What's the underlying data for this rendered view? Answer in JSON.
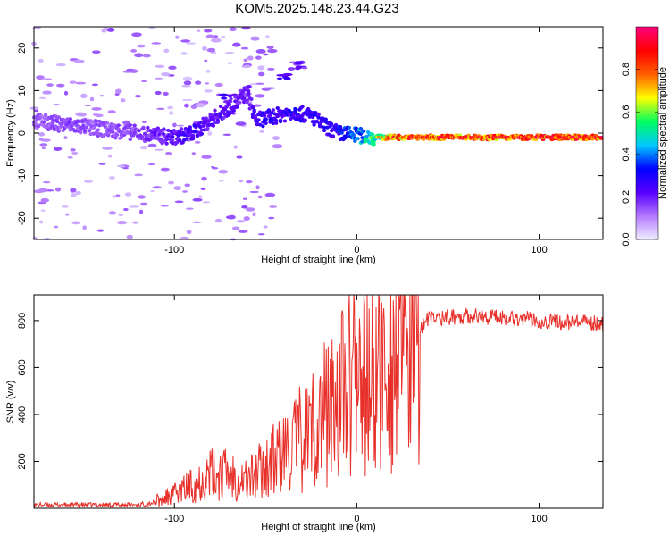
{
  "title": "KOM5.2025.148.23.44.G23",
  "chart_data": [
    {
      "type": "heatmap",
      "xlabel": "Height of straight line (km)",
      "ylabel": "Frequency (Hz)",
      "xlim": [
        -177,
        135
      ],
      "ylim": [
        -25,
        25
      ],
      "xticks": [
        -100,
        0,
        100
      ],
      "yticks": [
        -20,
        -10,
        0,
        10,
        20
      ],
      "grid": false,
      "colorbar": {
        "label": "Normalized spectral amplitude",
        "range": [
          0,
          1
        ],
        "ticks": [
          0.0,
          0.2,
          0.4,
          0.6,
          0.8
        ],
        "colormap": [
          "#f0f0ff",
          "#b47aff",
          "#5a00ff",
          "#0000ff",
          "#00c8ff",
          "#00ff60",
          "#ffff00",
          "#ff6000",
          "#ff0000",
          "#ff007a"
        ]
      },
      "trace": [
        {
          "x": -177,
          "f": 3,
          "amp": 0.15
        },
        {
          "x": -160,
          "f": 2,
          "amp": 0.18
        },
        {
          "x": -140,
          "f": 1,
          "amp": 0.16
        },
        {
          "x": -120,
          "f": 0,
          "amp": 0.18
        },
        {
          "x": -100,
          "f": -1,
          "amp": 0.25
        },
        {
          "x": -90,
          "f": 0,
          "amp": 0.28
        },
        {
          "x": -80,
          "f": 3,
          "amp": 0.25
        },
        {
          "x": -70,
          "f": 6,
          "amp": 0.25
        },
        {
          "x": -60,
          "f": 9,
          "amp": 0.2
        },
        {
          "x": -55,
          "f": 3,
          "amp": 0.28
        },
        {
          "x": -45,
          "f": 4,
          "amp": 0.3
        },
        {
          "x": -35,
          "f": 5,
          "amp": 0.3
        },
        {
          "x": -25,
          "f": 4,
          "amp": 0.3
        },
        {
          "x": -15,
          "f": 1,
          "amp": 0.3
        },
        {
          "x": -10,
          "f": 0,
          "amp": 0.35
        },
        {
          "x": 0,
          "f": -0.5,
          "amp": 0.45
        },
        {
          "x": 10,
          "f": -1,
          "amp": 0.6
        },
        {
          "x": 20,
          "f": -1,
          "amp": 0.85
        },
        {
          "x": 50,
          "f": -1,
          "amp": 0.9
        },
        {
          "x": 80,
          "f": -1,
          "amp": 0.88
        },
        {
          "x": 110,
          "f": -1,
          "amp": 0.9
        },
        {
          "x": 135,
          "f": -1,
          "amp": 0.88
        }
      ]
    },
    {
      "type": "line",
      "xlabel": "Height of straight line (km)",
      "ylabel": "SNR (v/v)",
      "xlim": [
        -177,
        135
      ],
      "ylim": [
        0,
        910
      ],
      "xticks": [
        -100,
        0,
        100
      ],
      "yticks": [
        200,
        400,
        600,
        800
      ],
      "grid": false,
      "series": [
        {
          "color": "#e8302a",
          "x": [
            -177,
            -150,
            -120,
            -110,
            -100,
            -90,
            -80,
            -70,
            -60,
            -50,
            -40,
            -30,
            -20,
            -10,
            0,
            10,
            20,
            30,
            40,
            60,
            80,
            90,
            100,
            120,
            135
          ],
          "y": [
            15,
            15,
            15,
            25,
            60,
            100,
            150,
            150,
            120,
            180,
            230,
            300,
            380,
            480,
            520,
            560,
            640,
            740,
            810,
            820,
            815,
            810,
            800,
            790,
            790
          ]
        }
      ]
    }
  ]
}
